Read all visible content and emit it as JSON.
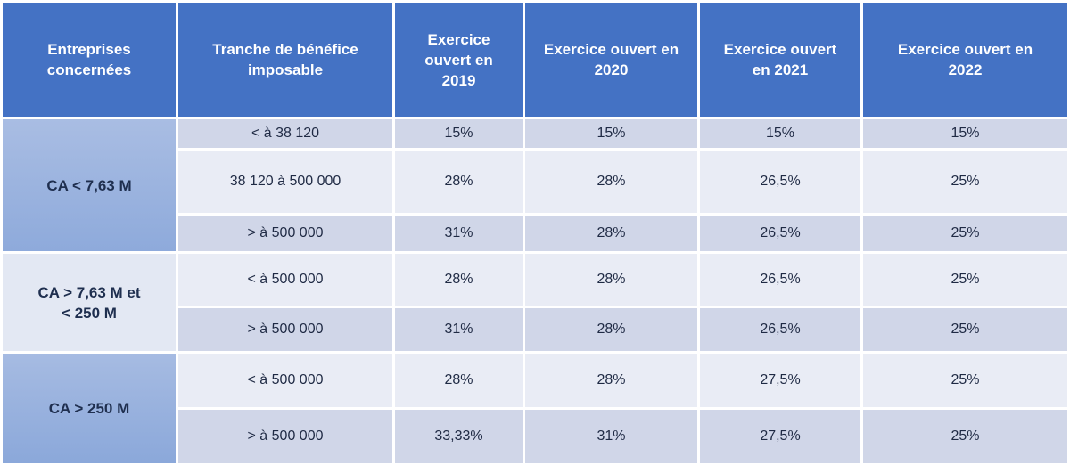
{
  "headers": [
    "Entreprises\nconcernées",
    "Tranche de bénéfice\nimposable",
    "Exercice\nouvert en\n2019",
    "Exercice ouvert en\n2020",
    "Exercice ouvert\nen 2021",
    "Exercice ouvert en\n2022"
  ],
  "groups": [
    {
      "label": "CA < 7,63 M",
      "rows": [
        {
          "tranche": "< à 38 120",
          "y2019": "15%",
          "y2020": "15%",
          "y2021": "15%",
          "y2022": "15%"
        },
        {
          "tranche": "38 120 à 500 000",
          "y2019": "28%",
          "y2020": "28%",
          "y2021": "26,5%",
          "y2022": "25%"
        },
        {
          "tranche": "> à 500 000",
          "y2019": "31%",
          "y2020": "28%",
          "y2021": "26,5%",
          "y2022": "25%"
        }
      ]
    },
    {
      "label": "CA > 7,63 M et\n< 250 M",
      "rows": [
        {
          "tranche": "< à 500 000",
          "y2019": "28%",
          "y2020": "28%",
          "y2021": "26,5%",
          "y2022": "25%"
        },
        {
          "tranche": "> à 500 000",
          "y2019": "31%",
          "y2020": "28%",
          "y2021": "26,5%",
          "y2022": "25%"
        }
      ]
    },
    {
      "label": "CA > 250 M",
      "rows": [
        {
          "tranche": "< à 500 000",
          "y2019": "28%",
          "y2020": "28%",
          "y2021": "27,5%",
          "y2022": "25%"
        },
        {
          "tranche": "> à 500 000",
          "y2019": "33,33%",
          "y2020": "31%",
          "y2021": "27,5%",
          "y2022": "25%"
        }
      ]
    }
  ]
}
